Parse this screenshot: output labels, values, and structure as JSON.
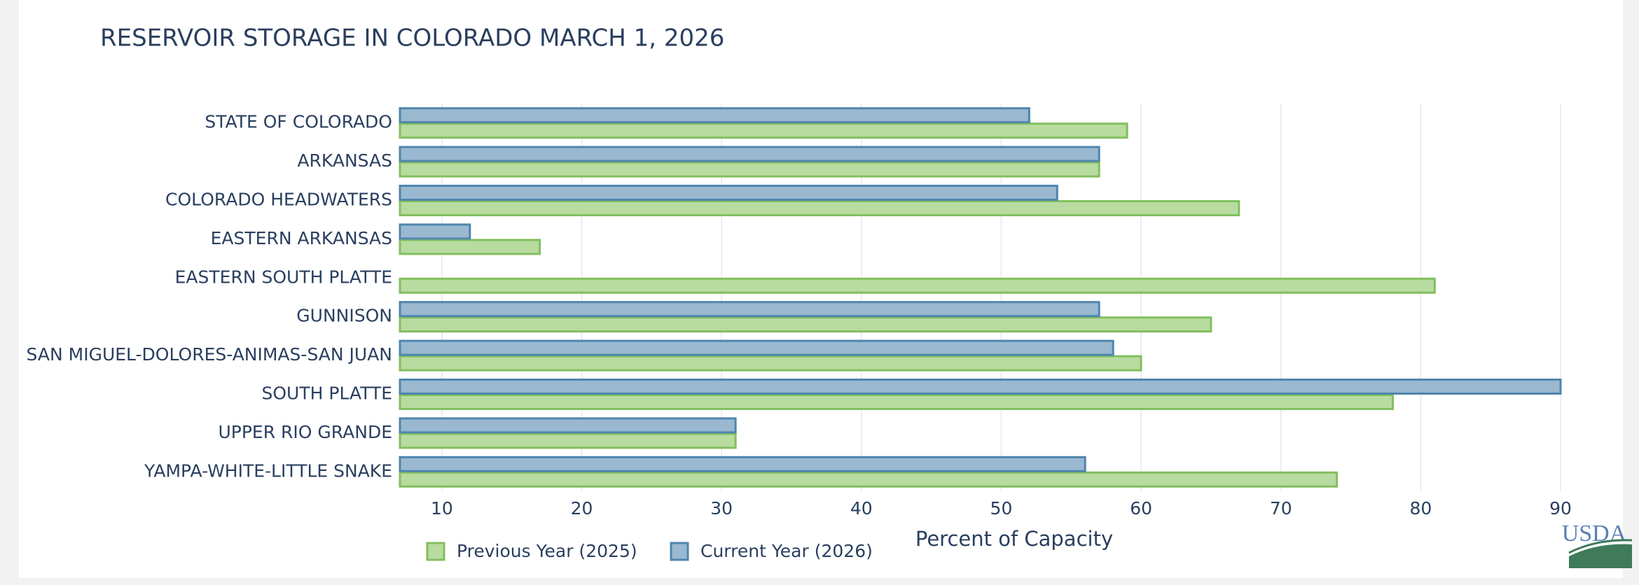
{
  "chart_data": {
    "type": "hbar",
    "title": "RESERVOIR STORAGE IN COLORADO MARCH 1, 2026",
    "categories": [
      "STATE OF COLORADO",
      "ARKANSAS",
      "COLORADO HEADWATERS",
      "EASTERN ARKANSAS",
      "EASTERN SOUTH PLATTE",
      "GUNNISON",
      "SAN MIGUEL-DOLORES-ANIMAS-SAN JUAN",
      "SOUTH PLATTE",
      "UPPER RIO GRANDE",
      "YAMPA-WHITE-LITTLE SNAKE"
    ],
    "series": [
      {
        "name": "Previous Year (2025)",
        "color": "#b8dba0",
        "stroke": "#82bf5e",
        "values": [
          59,
          57,
          67,
          17,
          81,
          65,
          60,
          78,
          31,
          74
        ]
      },
      {
        "name": "Current Year (2026)",
        "color": "#9ab8d0",
        "stroke": "#4f86ad",
        "values": [
          52,
          57,
          54,
          12,
          null,
          57,
          58,
          90,
          31,
          56
        ]
      }
    ],
    "xlabel": "Percent of Capacity",
    "xlim": [
      7,
      90.5
    ],
    "xticks": [
      10,
      20,
      30,
      40,
      50,
      60,
      70,
      80,
      90
    ],
    "grid": true,
    "logo": "USDA"
  }
}
